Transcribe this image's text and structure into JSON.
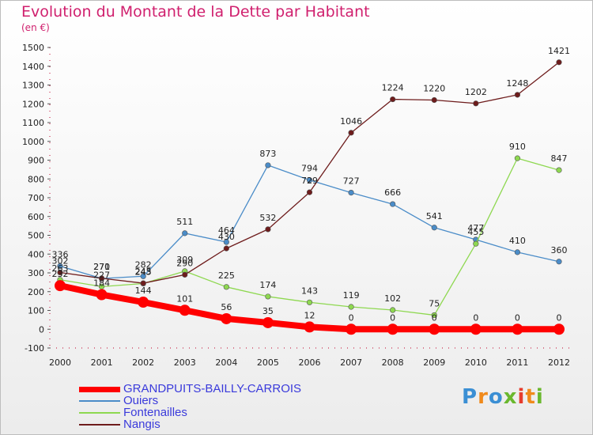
{
  "chart_data": {
    "type": "line",
    "title": "Evolution du Montant de la Dette par Habitant",
    "subtitle": "(en €)",
    "x": [
      "2000",
      "2001",
      "2002",
      "2003",
      "2004",
      "2005",
      "2006",
      "2007",
      "2008",
      "2009",
      "2010",
      "2011",
      "2012"
    ],
    "ylim": [
      -100,
      1500
    ],
    "yticks": [
      -100,
      0,
      100,
      200,
      300,
      400,
      500,
      600,
      700,
      800,
      900,
      1000,
      1100,
      1200,
      1300,
      1400,
      1500
    ],
    "grid": false,
    "legend_position": "bottom-left",
    "series": [
      {
        "name": "GRANDPUITS-BAILLY-CARROIS",
        "color": "#ff0000",
        "values": [
          232,
          184,
          144,
          101,
          56,
          35,
          12,
          0,
          0,
          0,
          0,
          0,
          0
        ],
        "labels": [
          "232",
          "184",
          "144",
          "101",
          "56",
          "35",
          "12",
          "0",
          "0",
          "0",
          "0",
          "0",
          "0"
        ]
      },
      {
        "name": "Ouiers",
        "color": "#4a8cc8",
        "values": [
          336,
          270,
          282,
          511,
          464,
          873,
          794,
          727,
          666,
          541,
          477,
          410,
          360
        ],
        "labels": [
          "336",
          "270",
          "282",
          "511",
          "464",
          "873",
          "794",
          "727",
          "666",
          "541",
          "477",
          "410",
          "360"
        ]
      },
      {
        "name": "Fontenailles",
        "color": "#8ed850",
        "values": [
          263,
          227,
          243,
          309,
          225,
          174,
          143,
          119,
          102,
          75,
          455,
          910,
          847
        ],
        "labels": [
          "263",
          "227",
          "243",
          "309",
          "225",
          "174",
          "143",
          "119",
          "102",
          "75",
          "455",
          "910",
          "847"
        ]
      },
      {
        "name": "Nangis",
        "color": "#6e1c1c",
        "values": [
          302,
          271,
          245,
          290,
          430,
          532,
          729,
          1046,
          1224,
          1220,
          1202,
          1248,
          1421
        ],
        "labels": [
          "302",
          "271",
          "245",
          "290",
          "430",
          "532",
          "729",
          "1046",
          "1224",
          "1220",
          "1202",
          "1248",
          "1421"
        ]
      }
    ]
  },
  "logo": {
    "text": "Proxiti",
    "letters": [
      "P",
      "r",
      "o",
      "x",
      "i",
      "t",
      "i"
    ],
    "colors": [
      "#3b8fd4",
      "#f08a1c",
      "#3b8fd4",
      "#6ab82e",
      "#e63c2e",
      "#f08a1c",
      "#6ab82e"
    ]
  }
}
